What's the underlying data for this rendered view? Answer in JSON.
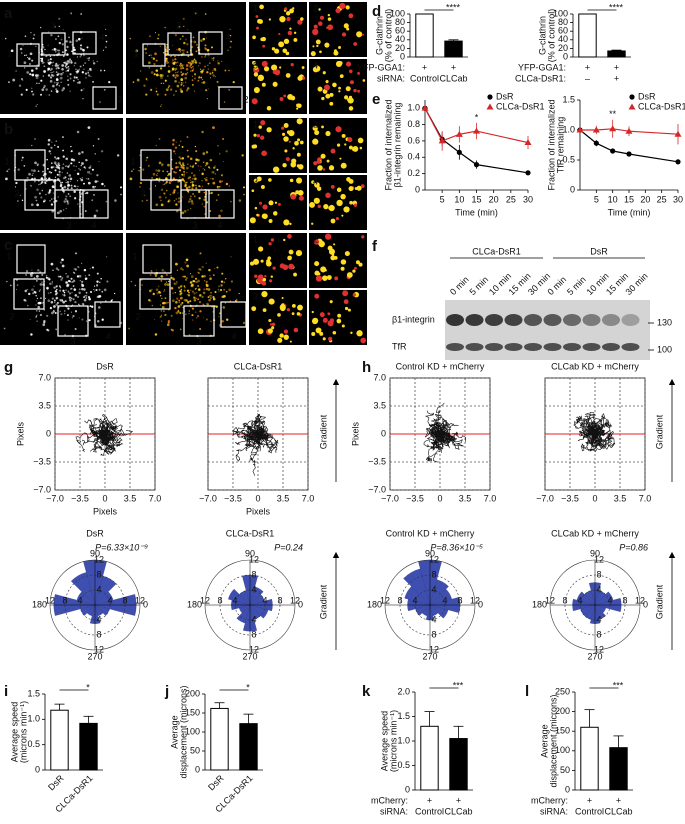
{
  "panel_labels": [
    "a",
    "b",
    "c",
    "d",
    "e",
    "f",
    "g",
    "h",
    "i",
    "j",
    "k",
    "l"
  ],
  "microscopy": [
    {
      "box_labels": [
        "1",
        "3",
        "4",
        "2"
      ],
      "tile_labels": [
        "1",
        "2",
        "3",
        "4"
      ]
    },
    {
      "box_labels": [
        "1",
        "2",
        "3",
        "4"
      ],
      "tile_labels": [
        "1",
        "2",
        "3",
        "4"
      ]
    },
    {
      "box_labels": [
        "1",
        "2",
        "3",
        "4"
      ],
      "tile_labels": [
        "1",
        "2",
        "3"
      ]
    }
  ],
  "blot": {
    "groups": [
      "CLCa-DsR1",
      "DsR"
    ],
    "lanes": [
      "0 min",
      "5 min",
      "10 min",
      "15 min",
      "30 min"
    ],
    "rows": [
      "β1-integrin",
      "TfR"
    ],
    "markers": [
      "130",
      "100"
    ]
  },
  "gradient_label": "Gradient",
  "chart_data": [
    {
      "type": "bar",
      "ylabel": [
        "G-clathrin",
        "(% of control)"
      ],
      "ylim": [
        0,
        100
      ],
      "yticks": [
        0,
        20,
        40,
        60,
        80,
        100
      ],
      "values": [
        100,
        37
      ],
      "errors": [
        0,
        3
      ],
      "colors": [
        "#ffffff",
        "#000000"
      ],
      "significance": "****",
      "condition_rows": [
        {
          "label": "YFP-GGA1:",
          "values": [
            "+",
            "+"
          ]
        },
        {
          "label": "siRNA:",
          "values": [
            "Control",
            "CLCab"
          ]
        }
      ]
    },
    {
      "type": "bar",
      "ylabel": [
        "G-clathrin",
        "(% of control)"
      ],
      "ylim": [
        0,
        100
      ],
      "yticks": [
        0,
        20,
        40,
        60,
        80,
        100
      ],
      "values": [
        100,
        14
      ],
      "errors": [
        0,
        2
      ],
      "colors": [
        "#ffffff",
        "#000000"
      ],
      "significance": "****",
      "condition_rows": [
        {
          "label": "YFP-GGA1:",
          "values": [
            "+",
            "+"
          ]
        },
        {
          "label": "CLCa-DsR1:",
          "values": [
            "–",
            "+"
          ]
        }
      ]
    },
    {
      "type": "line",
      "ylabel": [
        "Fraction of internalized",
        "β1-integrin remaining"
      ],
      "xlabel": "Time (min)",
      "x": [
        0,
        5,
        10,
        15,
        30
      ],
      "xlim": [
        0,
        30
      ],
      "xticks": [
        5,
        10,
        15,
        20,
        25,
        30
      ],
      "ylim": [
        0,
        1.1
      ],
      "yticks": [
        0,
        0.2,
        0.4,
        0.6,
        0.8,
        {
          "value": 1,
          "label": "1.0"
        }
      ],
      "series": [
        {
          "name": "DsR",
          "color": "#000000",
          "marker": "circle",
          "values": [
            1,
            0.62,
            0.46,
            0.31,
            0.21
          ],
          "errors": [
            0,
            0.08,
            0.09,
            0.05,
            0.02
          ]
        },
        {
          "name": "CLCa-DsR1",
          "color": "#d62728",
          "marker": "triangle",
          "values": [
            1,
            0.6,
            0.68,
            0.72,
            0.58
          ],
          "errors": [
            0,
            0.12,
            0.1,
            0.1,
            0.08
          ]
        }
      ],
      "annotations": [
        {
          "text": "*",
          "x": 15
        }
      ]
    },
    {
      "type": "line",
      "ylabel": [
        "Fraction of internalized",
        "TfR remaining"
      ],
      "xlabel": "Time (min)",
      "x": [
        0,
        5,
        10,
        15,
        30
      ],
      "xlim": [
        0,
        30
      ],
      "xticks": [
        5,
        10,
        15,
        20,
        25,
        30
      ],
      "ylim": [
        0,
        1.5
      ],
      "yticks": [
        0,
        0.5,
        {
          "value": 1,
          "label": "1.0"
        },
        1.5
      ],
      "series": [
        {
          "name": "DsR",
          "color": "#000000",
          "marker": "circle",
          "values": [
            1,
            0.78,
            0.65,
            0.6,
            0.47
          ],
          "errors": [
            0,
            0.05,
            0.04,
            0.04,
            0.04
          ]
        },
        {
          "name": "CLCa-DsR1",
          "color": "#d62728",
          "marker": "triangle",
          "values": [
            1,
            1,
            1.02,
            0.98,
            0.93
          ],
          "errors": [
            0,
            0.07,
            0.15,
            0.08,
            0.17
          ]
        }
      ],
      "annotations": [
        {
          "text": "**",
          "x": 10
        }
      ]
    },
    {
      "type": "track",
      "title": "DsR",
      "xlabel": "Pixels",
      "ylabel": "Pixels",
      "xlim": [
        -7,
        7
      ],
      "ylim": [
        -7,
        7
      ],
      "xticks": [
        {
          "value": -7,
          "label": "−7.0"
        },
        {
          "value": -3.5,
          "label": "−3.5"
        },
        0,
        {
          "value": 3.5,
          "label": "3.5"
        },
        {
          "value": 7,
          "label": "7.0"
        }
      ],
      "yticks": [
        {
          "value": -7,
          "label": "−7.0"
        },
        {
          "value": -3.5,
          "label": "−3.5"
        },
        0,
        {
          "value": 3.5,
          "label": "3.5"
        },
        {
          "value": 7,
          "label": "7.0"
        }
      ]
    },
    {
      "type": "track",
      "title": "CLCa-DsR1",
      "xlabel": "Pixels",
      "xlim": [
        -7,
        7
      ],
      "ylim": [
        -7,
        7
      ],
      "xticks": [
        {
          "value": -7,
          "label": "−7.0"
        },
        {
          "value": -3.5,
          "label": "−3.5"
        },
        0,
        {
          "value": 3.5,
          "label": "3.5"
        },
        {
          "value": 7,
          "label": "7.0"
        }
      ],
      "yticks": [
        -7,
        -3.5,
        0,
        3.5,
        7
      ]
    },
    {
      "type": "track",
      "title": "Control KD + mCherry",
      "ylabel": "Pixels",
      "xlim": [
        -7,
        7
      ],
      "ylim": [
        -7,
        7
      ],
      "xticks": [
        {
          "value": -7,
          "label": "−7.0"
        },
        {
          "value": -3.5,
          "label": "−3.5"
        },
        0,
        {
          "value": 3.5,
          "label": "3.5"
        },
        {
          "value": 7,
          "label": "7.0"
        }
      ],
      "yticks": [
        {
          "value": -7,
          "label": "−7.0"
        },
        {
          "value": -3.5,
          "label": "−3.5"
        },
        0,
        {
          "value": 3.5,
          "label": "3.5"
        },
        {
          "value": 7,
          "label": "7.0"
        }
      ]
    },
    {
      "type": "track",
      "title": "CLCab KD + mCherry",
      "xlim": [
        -7,
        7
      ],
      "ylim": [
        -7,
        7
      ],
      "xticks": [
        {
          "value": -7,
          "label": "−7.0"
        },
        {
          "value": -3.5,
          "label": "−3.5"
        },
        0,
        {
          "value": 3.5,
          "label": "3.5"
        },
        {
          "value": 7,
          "label": "7.0"
        }
      ],
      "yticks": [
        -7,
        -3.5,
        0,
        3.5,
        7
      ]
    },
    {
      "type": "rose",
      "title": "DsR",
      "p_value": "P=6.33×10⁻⁹",
      "rlim": [
        0,
        12
      ],
      "rticks": [
        4,
        8,
        12
      ],
      "angle_labels": [
        "90",
        "0",
        "180",
        "270"
      ],
      "color": "#3f4fb0",
      "values": [
        11,
        5,
        8,
        12,
        9,
        5,
        11,
        4,
        3,
        5,
        3,
        4
      ]
    },
    {
      "type": "rose",
      "title": "CLCa-DsR1",
      "p_value": "P=0.24",
      "rlim": [
        0,
        12
      ],
      "rticks": [
        4,
        8,
        12
      ],
      "angle_labels": [
        "90",
        "0",
        "180",
        "270"
      ],
      "color": "#3f4fb0",
      "values": [
        6,
        4,
        5,
        8,
        4,
        6,
        5,
        3,
        5,
        7,
        4,
        5
      ]
    },
    {
      "type": "rose",
      "title": "Control KD + mCherry",
      "p_value": "P=8.36×10⁻⁵",
      "rlim": [
        0,
        12
      ],
      "rticks": [
        4,
        8,
        12
      ],
      "angle_labels": [
        "90",
        "0",
        "180",
        "270"
      ],
      "color": "#3f4fb0",
      "values": [
        8,
        6,
        7,
        12,
        10,
        7,
        6,
        4,
        3,
        4,
        3,
        5
      ]
    },
    {
      "type": "rose",
      "title": "CLCab KD + mCherry",
      "p_value": "P=0.86",
      "rlim": [
        0,
        12
      ],
      "rticks": [
        4,
        8,
        12
      ],
      "angle_labels": [
        "90",
        "0",
        "180",
        "270"
      ],
      "color": "#3f4fb0",
      "values": [
        7,
        5,
        4,
        6,
        4,
        5,
        6,
        4,
        4,
        5,
        4,
        3
      ]
    },
    {
      "type": "bar",
      "ylabel": [
        "Average speed",
        "(microns min⁻¹)"
      ],
      "ylim": [
        0,
        1.5
      ],
      "yticks": [
        0,
        0.5,
        {
          "value": 1,
          "label": "1.0"
        },
        1.5
      ],
      "values": [
        1.18,
        0.92
      ],
      "errors": [
        0.12,
        0.14
      ],
      "colors": [
        "#ffffff",
        "#000000"
      ],
      "significance": "*",
      "categories": [
        "DsR",
        "CLCa-DsR1"
      ]
    },
    {
      "type": "bar",
      "ylabel": [
        "Average",
        "displacement (microns)"
      ],
      "ylim": [
        0,
        200
      ],
      "yticks": [
        0,
        50,
        100,
        150,
        200
      ],
      "values": [
        162,
        122
      ],
      "errors": [
        15,
        25
      ],
      "colors": [
        "#ffffff",
        "#000000"
      ],
      "significance": "*",
      "categories": [
        "DsR",
        "CLCa-DsR1"
      ]
    },
    {
      "type": "bar",
      "ylabel": [
        "Average speed",
        "(microns min⁻¹)"
      ],
      "ylim": [
        0,
        2
      ],
      "yticks": [
        0,
        0.5,
        {
          "value": 1,
          "label": "1.0"
        },
        1.5,
        {
          "value": 2,
          "label": "2.0"
        }
      ],
      "values": [
        1.3,
        1.05
      ],
      "errors": [
        0.3,
        0.25
      ],
      "colors": [
        "#ffffff",
        "#000000"
      ],
      "significance": "***",
      "condition_rows": [
        {
          "label": "mCherry:",
          "values": [
            "+",
            "+"
          ]
        },
        {
          "label": "siRNA:",
          "values": [
            "Control",
            "CLCab"
          ]
        }
      ]
    },
    {
      "type": "bar",
      "ylabel": [
        "Average",
        "displacement (microns)"
      ],
      "ylim": [
        0,
        250
      ],
      "yticks": [
        0,
        50,
        100,
        150,
        200,
        250
      ],
      "values": [
        160,
        108
      ],
      "errors": [
        45,
        30
      ],
      "colors": [
        "#ffffff",
        "#000000"
      ],
      "significance": "***",
      "condition_rows": [
        {
          "label": "mCherry:",
          "values": [
            "+",
            "+"
          ]
        },
        {
          "label": "siRNA:",
          "values": [
            "Control",
            "CLCab"
          ]
        }
      ]
    }
  ]
}
